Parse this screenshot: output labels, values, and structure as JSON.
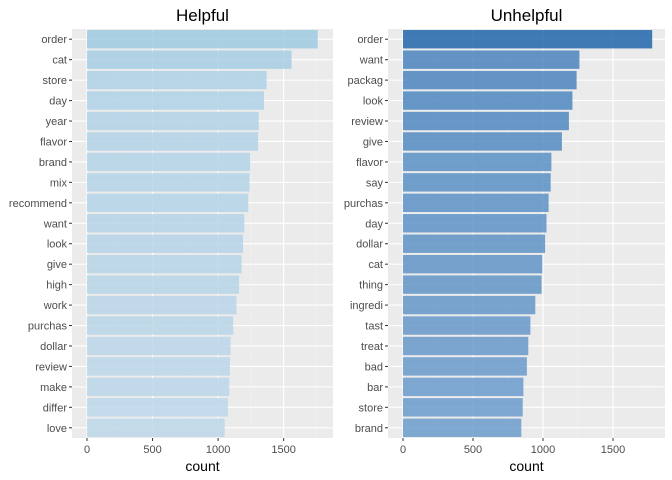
{
  "chart_data": [
    {
      "type": "bar",
      "orientation": "horizontal",
      "title": "Helpful",
      "xlabel": "count",
      "ylabel": "",
      "xlim": [
        0,
        1800
      ],
      "xticks": [
        0,
        500,
        1000,
        1500
      ],
      "grid": true,
      "bar_color_light": "#bcd7e9",
      "bar_color_dark": "#9ecae1",
      "categories": [
        "order",
        "cat",
        "store",
        "day",
        "year",
        "flavor",
        "brand",
        "mix",
        "recommend",
        "want",
        "look",
        "give",
        "high",
        "work",
        "purchas",
        "dollar",
        "review",
        "make",
        "differ",
        "love"
      ],
      "values": [
        1760,
        1560,
        1370,
        1350,
        1310,
        1305,
        1245,
        1240,
        1230,
        1200,
        1190,
        1180,
        1160,
        1140,
        1115,
        1095,
        1090,
        1085,
        1075,
        1050
      ]
    },
    {
      "type": "bar",
      "orientation": "horizontal",
      "title": "Unhelpful",
      "xlabel": "count",
      "ylabel": "",
      "xlim": [
        0,
        1800
      ],
      "xticks": [
        0,
        500,
        1000,
        1500
      ],
      "grid": true,
      "bar_color_light": "#6b9ccb",
      "bar_color_dark": "#2166ac",
      "categories": [
        "order",
        "want",
        "packag",
        "look",
        "review",
        "give",
        "flavor",
        "say",
        "purchas",
        "day",
        "dollar",
        "cat",
        "thing",
        "ingredi",
        "tast",
        "treat",
        "bad",
        "bar",
        "store",
        "brand"
      ],
      "values": [
        1780,
        1260,
        1240,
        1210,
        1185,
        1135,
        1060,
        1055,
        1040,
        1025,
        1015,
        995,
        990,
        945,
        910,
        895,
        885,
        860,
        855,
        845
      ]
    }
  ]
}
